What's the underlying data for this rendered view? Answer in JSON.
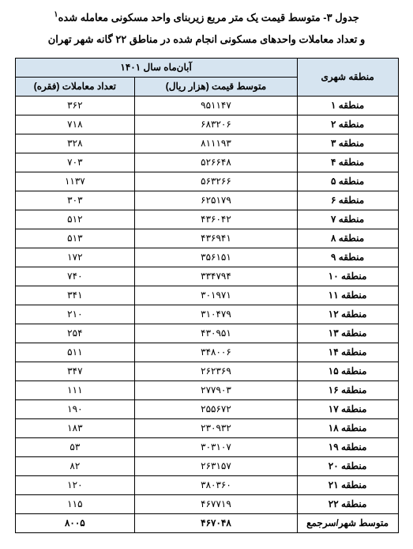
{
  "title_line1_pre": "جدول ۳- متوسط قیمت یک متر مربع زیربنای واحد مسکونی معامله شده",
  "title_line1_sup": "۱",
  "title_line2": "و تعداد معاملات واحدهای مسکونی انجام شده در مناطق ۲۲ گانه شهر تهران",
  "header_region": "منطقه شهری",
  "header_period": "آبان‌ماه سال ۱۴۰۱",
  "header_price": "متوسط قیمت (هزار ریال)",
  "header_count": "تعداد معاملات (فقره)",
  "rows": [
    {
      "region": "منطقه ۱",
      "price": "۹۵۱۱۴۷",
      "count": "۳۶۲"
    },
    {
      "region": "منطقه ۲",
      "price": "۶۸۳۲۰۶",
      "count": "۷۱۸"
    },
    {
      "region": "منطقه ۳",
      "price": "۸۱۱۱۹۳",
      "count": "۳۲۸"
    },
    {
      "region": "منطقه ۴",
      "price": "۵۲۶۶۴۸",
      "count": "۷۰۳"
    },
    {
      "region": "منطقه ۵",
      "price": "۵۶۳۲۶۶",
      "count": "۱۱۳۷"
    },
    {
      "region": "منطقه ۶",
      "price": "۶۲۵۱۷۹",
      "count": "۳۰۳"
    },
    {
      "region": "منطقه ۷",
      "price": "۴۳۶۰۴۲",
      "count": "۵۱۲"
    },
    {
      "region": "منطقه ۸",
      "price": "۴۳۶۹۴۱",
      "count": "۵۱۳"
    },
    {
      "region": "منطقه ۹",
      "price": "۳۵۶۱۵۱",
      "count": "۱۷۲"
    },
    {
      "region": "منطقه ۱۰",
      "price": "۳۳۴۷۹۴",
      "count": "۷۴۰"
    },
    {
      "region": "منطقه ۱۱",
      "price": "۳۰۱۹۷۱",
      "count": "۳۴۱"
    },
    {
      "region": "منطقه ۱۲",
      "price": "۳۱۰۴۷۹",
      "count": "۲۱۰"
    },
    {
      "region": "منطقه ۱۳",
      "price": "۴۳۰۹۵۱",
      "count": "۲۵۴"
    },
    {
      "region": "منطقه ۱۴",
      "price": "۳۴۸۰۰۶",
      "count": "۵۱۱"
    },
    {
      "region": "منطقه ۱۵",
      "price": "۲۶۲۳۶۹",
      "count": "۳۴۷"
    },
    {
      "region": "منطقه ۱۶",
      "price": "۲۷۷۹۰۳",
      "count": "۱۱۱"
    },
    {
      "region": "منطقه ۱۷",
      "price": "۲۵۵۶۷۲",
      "count": "۱۹۰"
    },
    {
      "region": "منطقه ۱۸",
      "price": "۲۳۰۹۳۲",
      "count": "۱۸۳"
    },
    {
      "region": "منطقه ۱۹",
      "price": "۳۰۳۱۰۷",
      "count": "۵۳"
    },
    {
      "region": "منطقه ۲۰",
      "price": "۲۶۳۱۵۷",
      "count": "۸۲"
    },
    {
      "region": "منطقه ۲۱",
      "price": "۳۸۰۳۶۰",
      "count": "۱۲۰"
    },
    {
      "region": "منطقه ۲۲",
      "price": "۴۶۷۷۱۹",
      "count": "۱۱۵"
    }
  ],
  "total_label": "متوسط شهر/سرجمع",
  "total_price": "۴۶۷۰۴۸",
  "total_count": "۸۰۰۵"
}
